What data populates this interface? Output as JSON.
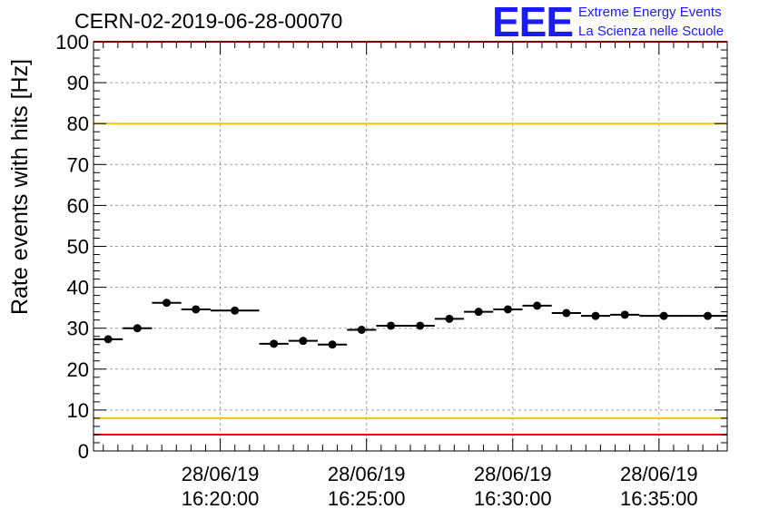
{
  "header": {
    "title": "CERN-02-2019-06-28-00070",
    "logo_text": "EEE",
    "logo_line1": "Extreme Energy Events",
    "logo_line2": "La Scienza nelle Scuole"
  },
  "colors": {
    "logo": "#1a1aff",
    "red_line": "#ff0000",
    "yellow_line": "#f0c800",
    "grid": "#a0a0a0",
    "marker": "#000000"
  },
  "chart_data": {
    "type": "scatter",
    "title": "CERN-02-2019-06-28-00070",
    "ylabel": "Rate events with hits [Hz]",
    "xlabel": "",
    "ylim": [
      0,
      100
    ],
    "xlim": [
      "2019-06-28 16:15:40",
      "2019-06-28 16:37:20"
    ],
    "grid": true,
    "yticks": [
      0,
      10,
      20,
      30,
      40,
      50,
      60,
      70,
      80,
      90,
      100
    ],
    "xticks": [
      {
        "time": "2019-06-28 16:20:00",
        "line1": "28/06/19",
        "line2": "16:20:00"
      },
      {
        "time": "2019-06-28 16:25:00",
        "line1": "28/06/19",
        "line2": "16:25:00"
      },
      {
        "time": "2019-06-28 16:30:00",
        "line1": "28/06/19",
        "line2": "16:30:00"
      },
      {
        "time": "2019-06-28 16:35:00",
        "line1": "28/06/19",
        "line2": "16:35:00"
      }
    ],
    "reference_lines": [
      {
        "y": 100,
        "color": "#ff0000"
      },
      {
        "y": 80,
        "color": "#f0c800"
      },
      {
        "y": 8,
        "color": "#f0c800"
      },
      {
        "y": 4,
        "color": "#ff0000"
      }
    ],
    "series": [
      {
        "points": [
          {
            "x_start": "2019-06-28 16:15:40",
            "x_end": "2019-06-28 16:16:40",
            "y": 27.3
          },
          {
            "x_start": "2019-06-28 16:16:40",
            "x_end": "2019-06-28 16:17:40",
            "y": 30.0
          },
          {
            "x_start": "2019-06-28 16:17:40",
            "x_end": "2019-06-28 16:18:40",
            "y": 36.2
          },
          {
            "x_start": "2019-06-28 16:18:40",
            "x_end": "2019-06-28 16:19:40",
            "y": 34.6
          },
          {
            "x_start": "2019-06-28 16:19:40",
            "x_end": "2019-06-28 16:21:20",
            "y": 34.3
          },
          {
            "x_start": "2019-06-28 16:21:20",
            "x_end": "2019-06-28 16:22:20",
            "y": 26.2
          },
          {
            "x_start": "2019-06-28 16:22:20",
            "x_end": "2019-06-28 16:23:20",
            "y": 26.9
          },
          {
            "x_start": "2019-06-28 16:23:20",
            "x_end": "2019-06-28 16:24:20",
            "y": 26.0
          },
          {
            "x_start": "2019-06-28 16:24:20",
            "x_end": "2019-06-28 16:25:20",
            "y": 29.6
          },
          {
            "x_start": "2019-06-28 16:25:20",
            "x_end": "2019-06-28 16:26:20",
            "y": 30.6
          },
          {
            "x_start": "2019-06-28 16:26:20",
            "x_end": "2019-06-28 16:27:20",
            "y": 30.6
          },
          {
            "x_start": "2019-06-28 16:27:20",
            "x_end": "2019-06-28 16:28:20",
            "y": 32.3
          },
          {
            "x_start": "2019-06-28 16:28:20",
            "x_end": "2019-06-28 16:29:20",
            "y": 34.0
          },
          {
            "x_start": "2019-06-28 16:29:20",
            "x_end": "2019-06-28 16:30:20",
            "y": 34.6
          },
          {
            "x_start": "2019-06-28 16:30:20",
            "x_end": "2019-06-28 16:31:20",
            "y": 35.5
          },
          {
            "x_start": "2019-06-28 16:31:20",
            "x_end": "2019-06-28 16:32:20",
            "y": 33.7
          },
          {
            "x_start": "2019-06-28 16:32:20",
            "x_end": "2019-06-28 16:33:20",
            "y": 33.0
          },
          {
            "x_start": "2019-06-28 16:33:20",
            "x_end": "2019-06-28 16:34:20",
            "y": 33.3
          },
          {
            "x_start": "2019-06-28 16:34:20",
            "x_end": "2019-06-28 16:36:00",
            "y": 33.0
          },
          {
            "x_start": "2019-06-28 16:36:00",
            "x_end": "2019-06-28 16:37:20",
            "y": 33.0
          }
        ]
      }
    ]
  }
}
